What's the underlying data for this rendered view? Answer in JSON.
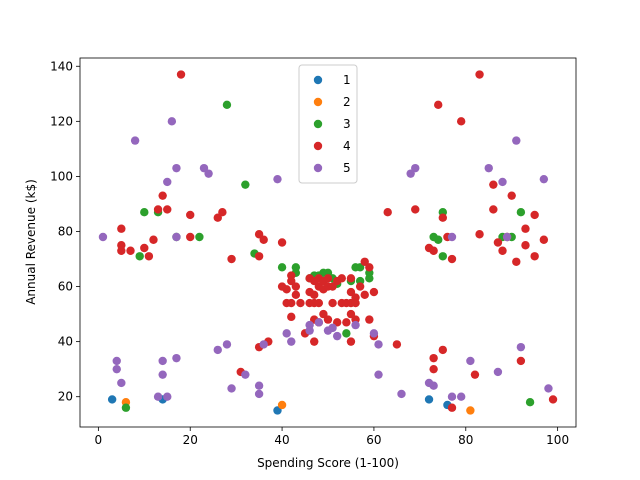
{
  "chart_data": {
    "type": "scatter",
    "title": "",
    "xlabel": "Spending Score (1-100)",
    "ylabel": "Annual Revenue (k$)",
    "xlim": [
      -4,
      104
    ],
    "ylim": [
      9,
      143
    ],
    "xticks": [
      0,
      20,
      40,
      60,
      80,
      100
    ],
    "yticks": [
      20,
      40,
      60,
      80,
      100,
      120,
      140
    ],
    "grid": false,
    "legend_position": "top-center",
    "series": [
      {
        "name": "1",
        "color": "#1f77b4",
        "points": [
          [
            3,
            19
          ],
          [
            14,
            19
          ],
          [
            39,
            15
          ],
          [
            72,
            19
          ],
          [
            76,
            17
          ]
        ]
      },
      {
        "name": "2",
        "color": "#ff7f0e",
        "points": [
          [
            6,
            18
          ],
          [
            40,
            17
          ],
          [
            81,
            15
          ]
        ]
      },
      {
        "name": "3",
        "color": "#2ca02c",
        "points": [
          [
            6,
            16
          ],
          [
            10,
            87
          ],
          [
            9,
            71
          ],
          [
            13,
            87
          ],
          [
            17,
            78
          ],
          [
            22,
            78
          ],
          [
            28,
            126
          ],
          [
            32,
            97
          ],
          [
            34,
            72
          ],
          [
            40,
            67
          ],
          [
            43,
            65
          ],
          [
            43,
            67
          ],
          [
            46,
            63
          ],
          [
            47,
            64
          ],
          [
            48,
            64
          ],
          [
            49,
            65
          ],
          [
            50,
            65
          ],
          [
            51,
            63
          ],
          [
            52,
            61
          ],
          [
            54,
            43
          ],
          [
            55,
            62
          ],
          [
            56,
            67
          ],
          [
            57,
            62
          ],
          [
            57,
            67
          ],
          [
            59,
            63
          ],
          [
            59,
            65
          ],
          [
            73,
            78
          ],
          [
            74,
            77
          ],
          [
            75,
            87
          ],
          [
            75,
            71
          ],
          [
            88,
            78
          ],
          [
            90,
            78
          ],
          [
            92,
            87
          ],
          [
            94,
            18
          ]
        ]
      },
      {
        "name": "4",
        "color": "#d62728",
        "points": [
          [
            5,
            81
          ],
          [
            5,
            75
          ],
          [
            5,
            73
          ],
          [
            7,
            73
          ],
          [
            10,
            74
          ],
          [
            11,
            71
          ],
          [
            12,
            77
          ],
          [
            13,
            88
          ],
          [
            14,
            93
          ],
          [
            15,
            88
          ],
          [
            18,
            137
          ],
          [
            20,
            86
          ],
          [
            20,
            78
          ],
          [
            26,
            85
          ],
          [
            27,
            87
          ],
          [
            29,
            70
          ],
          [
            31,
            29
          ],
          [
            35,
            79
          ],
          [
            35,
            71
          ],
          [
            35,
            38
          ],
          [
            36,
            77
          ],
          [
            37,
            40
          ],
          [
            40,
            76
          ],
          [
            40,
            60
          ],
          [
            41,
            59
          ],
          [
            41,
            54
          ],
          [
            42,
            64
          ],
          [
            42,
            62
          ],
          [
            42,
            54
          ],
          [
            42,
            49
          ],
          [
            43,
            60
          ],
          [
            43,
            57
          ],
          [
            44,
            54
          ],
          [
            45,
            43
          ],
          [
            46,
            63
          ],
          [
            46,
            58
          ],
          [
            46,
            54
          ],
          [
            47,
            62
          ],
          [
            47,
            57
          ],
          [
            47,
            54
          ],
          [
            47,
            48
          ],
          [
            47,
            40
          ],
          [
            48,
            63
          ],
          [
            48,
            60
          ],
          [
            48,
            54
          ],
          [
            48,
            47
          ],
          [
            49,
            62
          ],
          [
            49,
            59
          ],
          [
            49,
            50
          ],
          [
            50,
            63
          ],
          [
            50,
            60
          ],
          [
            50,
            48
          ],
          [
            51,
            60
          ],
          [
            51,
            54
          ],
          [
            52,
            62
          ],
          [
            52,
            47
          ],
          [
            53,
            54
          ],
          [
            53,
            63
          ],
          [
            54,
            54
          ],
          [
            54,
            47
          ],
          [
            55,
            63
          ],
          [
            55,
            58
          ],
          [
            55,
            54
          ],
          [
            55,
            50
          ],
          [
            55,
            40
          ],
          [
            56,
            56
          ],
          [
            56,
            54
          ],
          [
            56,
            48
          ],
          [
            57,
            60
          ],
          [
            58,
            57
          ],
          [
            58,
            69
          ],
          [
            59,
            67
          ],
          [
            59,
            48
          ],
          [
            60,
            58
          ],
          [
            60,
            42
          ],
          [
            63,
            87
          ],
          [
            65,
            39
          ],
          [
            69,
            88
          ],
          [
            72,
            74
          ],
          [
            73,
            73
          ],
          [
            73,
            34
          ],
          [
            73,
            30
          ],
          [
            74,
            126
          ],
          [
            75,
            85
          ],
          [
            75,
            37
          ],
          [
            76,
            78
          ],
          [
            77,
            70
          ],
          [
            77,
            16
          ],
          [
            79,
            120
          ],
          [
            82,
            28
          ],
          [
            83,
            137
          ],
          [
            83,
            79
          ],
          [
            86,
            97
          ],
          [
            86,
            88
          ],
          [
            87,
            76
          ],
          [
            88,
            73
          ],
          [
            89,
            78
          ],
          [
            90,
            93
          ],
          [
            91,
            69
          ],
          [
            92,
            33
          ],
          [
            93,
            81
          ],
          [
            93,
            75
          ],
          [
            95,
            86
          ],
          [
            95,
            71
          ],
          [
            97,
            77
          ],
          [
            99,
            19
          ]
        ]
      },
      {
        "name": "5",
        "color": "#9467bd",
        "points": [
          [
            1,
            78
          ],
          [
            4,
            33
          ],
          [
            4,
            30
          ],
          [
            5,
            25
          ],
          [
            8,
            113
          ],
          [
            13,
            20
          ],
          [
            14,
            33
          ],
          [
            14,
            28
          ],
          [
            15,
            98
          ],
          [
            15,
            20
          ],
          [
            16,
            120
          ],
          [
            17,
            103
          ],
          [
            17,
            78
          ],
          [
            17,
            34
          ],
          [
            23,
            103
          ],
          [
            24,
            101
          ],
          [
            26,
            37
          ],
          [
            28,
            39
          ],
          [
            29,
            23
          ],
          [
            32,
            28
          ],
          [
            35,
            24
          ],
          [
            35,
            21
          ],
          [
            36,
            39
          ],
          [
            39,
            99
          ],
          [
            41,
            43
          ],
          [
            42,
            40
          ],
          [
            46,
            46
          ],
          [
            46,
            44
          ],
          [
            48,
            47
          ],
          [
            50,
            44
          ],
          [
            51,
            45
          ],
          [
            52,
            42
          ],
          [
            56,
            46
          ],
          [
            60,
            43
          ],
          [
            61,
            39
          ],
          [
            61,
            28
          ],
          [
            66,
            21
          ],
          [
            68,
            101
          ],
          [
            69,
            103
          ],
          [
            72,
            25
          ],
          [
            73,
            24
          ],
          [
            77,
            78
          ],
          [
            77,
            20
          ],
          [
            79,
            20
          ],
          [
            81,
            33
          ],
          [
            85,
            103
          ],
          [
            87,
            29
          ],
          [
            88,
            98
          ],
          [
            89,
            78
          ],
          [
            91,
            113
          ],
          [
            92,
            38
          ],
          [
            97,
            99
          ],
          [
            98,
            23
          ]
        ]
      }
    ]
  }
}
